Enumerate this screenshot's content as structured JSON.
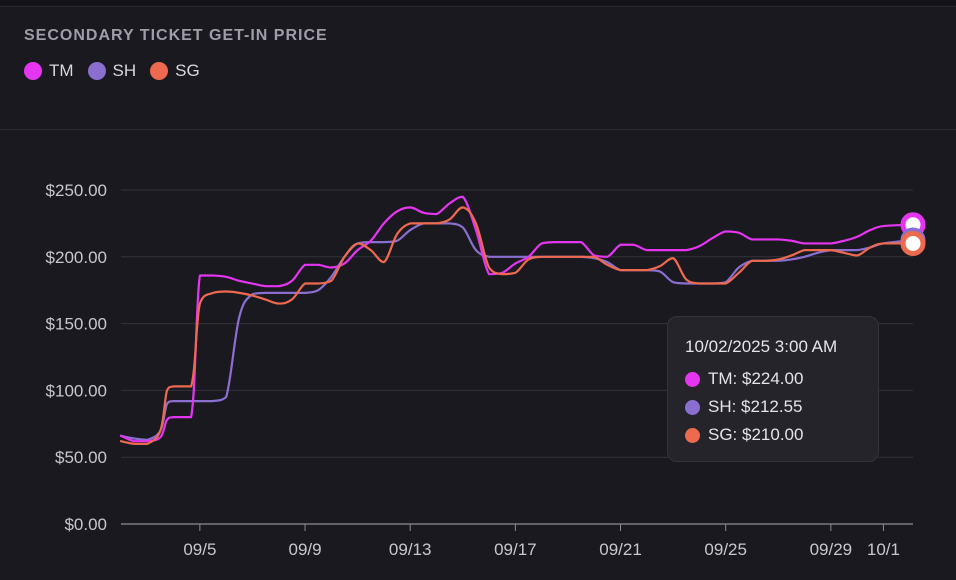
{
  "title": "SECONDARY TICKET GET-IN PRICE",
  "legend": [
    {
      "label": "TM",
      "color": "#e535f0"
    },
    {
      "label": "SH",
      "color": "#8a6fd0"
    },
    {
      "label": "SG",
      "color": "#ee6a4e"
    }
  ],
  "tooltip": {
    "title": "10/02/2025 3:00 AM",
    "rows": [
      {
        "text": "TM: $224.00",
        "color": "#e535f0"
      },
      {
        "text": "SH: $212.55",
        "color": "#8a6fd0"
      },
      {
        "text": "SG: $210.00",
        "color": "#ee6a4e"
      }
    ]
  },
  "chart_data": {
    "type": "line",
    "title": "SECONDARY TICKET GET-IN PRICE",
    "xlabel": "",
    "ylabel": "",
    "ylim": [
      0,
      250
    ],
    "xlim": [
      "2025-09-02",
      "2025-10-02T03:00"
    ],
    "y_ticks": [
      "$0.00",
      "$50.00",
      "$100.00",
      "$150.00",
      "$200.00",
      "$250.00"
    ],
    "y_tick_values": [
      0,
      50,
      100,
      150,
      200,
      250
    ],
    "x_ticks": [
      "09/5",
      "09/9",
      "09/13",
      "09/17",
      "09/21",
      "09/25",
      "09/29",
      "10/1"
    ],
    "x_tick_dates": [
      "2025-09-05",
      "2025-09-09",
      "2025-09-13",
      "2025-09-17",
      "2025-09-21",
      "2025-09-25",
      "2025-09-29",
      "2025-10-01"
    ],
    "grid": true,
    "legend_position": "top-left",
    "series": [
      {
        "name": "TM",
        "color": "#e535f0",
        "points": [
          [
            "2025-09-02",
            66
          ],
          [
            "2025-09-02T12:00",
            62
          ],
          [
            "2025-09-03",
            62
          ],
          [
            "2025-09-03T12:00",
            65
          ],
          [
            "2025-09-03T18:00",
            78
          ],
          [
            "2025-09-04",
            80
          ],
          [
            "2025-09-04T16:00",
            80
          ],
          [
            "2025-09-05",
            186
          ],
          [
            "2025-09-05T12:00",
            186
          ],
          [
            "2025-09-06",
            185
          ],
          [
            "2025-09-06T12:00",
            182
          ],
          [
            "2025-09-07",
            180
          ],
          [
            "2025-09-07T12:00",
            178
          ],
          [
            "2025-09-08",
            178
          ],
          [
            "2025-09-08T12:00",
            182
          ],
          [
            "2025-09-09",
            194
          ],
          [
            "2025-09-09T12:00",
            194
          ],
          [
            "2025-09-10",
            192
          ],
          [
            "2025-09-10T12:00",
            195
          ],
          [
            "2025-09-11",
            205
          ],
          [
            "2025-09-11T12:00",
            212
          ],
          [
            "2025-09-12",
            225
          ],
          [
            "2025-09-12T12:00",
            234
          ],
          [
            "2025-09-13",
            237
          ],
          [
            "2025-09-13T12:00",
            233
          ],
          [
            "2025-09-14",
            232
          ],
          [
            "2025-09-14T12:00",
            240
          ],
          [
            "2025-09-15",
            245
          ],
          [
            "2025-09-15T12:00",
            220
          ],
          [
            "2025-09-16",
            187
          ],
          [
            "2025-09-16T12:00",
            188
          ],
          [
            "2025-09-17",
            195
          ],
          [
            "2025-09-17T12:00",
            200
          ],
          [
            "2025-09-18",
            210
          ],
          [
            "2025-09-18T12:00",
            211
          ],
          [
            "2025-09-19",
            211
          ],
          [
            "2025-09-19T12:00",
            211
          ],
          [
            "2025-09-20",
            201
          ],
          [
            "2025-09-20T12:00",
            200
          ],
          [
            "2025-09-21",
            209
          ],
          [
            "2025-09-21T12:00",
            209
          ],
          [
            "2025-09-22",
            205
          ],
          [
            "2025-09-22T12:00",
            205
          ],
          [
            "2025-09-23",
            205
          ],
          [
            "2025-09-23T12:00",
            205
          ],
          [
            "2025-09-24",
            208
          ],
          [
            "2025-09-24T12:00",
            214
          ],
          [
            "2025-09-25",
            219
          ],
          [
            "2025-09-25T12:00",
            218
          ],
          [
            "2025-09-26",
            213
          ],
          [
            "2025-09-26T12:00",
            213
          ],
          [
            "2025-09-27",
            213
          ],
          [
            "2025-09-27T12:00",
            212
          ],
          [
            "2025-09-28",
            210
          ],
          [
            "2025-09-28T12:00",
            210
          ],
          [
            "2025-09-29",
            210
          ],
          [
            "2025-09-29T12:00",
            212
          ],
          [
            "2025-09-30",
            215
          ],
          [
            "2025-09-30T12:00",
            220
          ],
          [
            "2025-10-01",
            223
          ],
          [
            "2025-10-02T03:00",
            224
          ]
        ]
      },
      {
        "name": "SH",
        "color": "#8a6fd0",
        "points": [
          [
            "2025-09-02",
            66
          ],
          [
            "2025-09-02T12:00",
            64
          ],
          [
            "2025-09-03",
            63
          ],
          [
            "2025-09-03T12:00",
            70
          ],
          [
            "2025-09-03T18:00",
            90
          ],
          [
            "2025-09-04",
            92
          ],
          [
            "2025-09-04T16:00",
            92
          ],
          [
            "2025-09-05",
            92
          ],
          [
            "2025-09-05T12:00",
            92
          ],
          [
            "2025-09-06",
            95
          ],
          [
            "2025-09-06T12:00",
            155
          ],
          [
            "2025-09-07",
            172
          ],
          [
            "2025-09-07T12:00",
            173
          ],
          [
            "2025-09-08",
            173
          ],
          [
            "2025-09-08T12:00",
            173
          ],
          [
            "2025-09-09",
            173
          ],
          [
            "2025-09-09T12:00",
            175
          ],
          [
            "2025-09-10",
            185
          ],
          [
            "2025-09-10T12:00",
            200
          ],
          [
            "2025-09-11",
            210
          ],
          [
            "2025-09-11T12:00",
            211
          ],
          [
            "2025-09-12",
            211
          ],
          [
            "2025-09-12T12:00",
            212
          ],
          [
            "2025-09-13",
            220
          ],
          [
            "2025-09-13T12:00",
            225
          ],
          [
            "2025-09-14",
            225
          ],
          [
            "2025-09-14T12:00",
            225
          ],
          [
            "2025-09-15",
            222
          ],
          [
            "2025-09-15T12:00",
            205
          ],
          [
            "2025-09-16",
            200
          ],
          [
            "2025-09-16T12:00",
            200
          ],
          [
            "2025-09-17",
            200
          ],
          [
            "2025-09-17T12:00",
            200
          ],
          [
            "2025-09-18",
            200
          ],
          [
            "2025-09-18T12:00",
            200
          ],
          [
            "2025-09-19",
            200
          ],
          [
            "2025-09-19T12:00",
            200
          ],
          [
            "2025-09-20",
            199
          ],
          [
            "2025-09-20T12:00",
            196
          ],
          [
            "2025-09-21",
            190
          ],
          [
            "2025-09-21T12:00",
            190
          ],
          [
            "2025-09-22",
            190
          ],
          [
            "2025-09-22T12:00",
            189
          ],
          [
            "2025-09-23",
            181
          ],
          [
            "2025-09-23T12:00",
            180
          ],
          [
            "2025-09-24",
            180
          ],
          [
            "2025-09-24T12:00",
            180
          ],
          [
            "2025-09-25",
            181
          ],
          [
            "2025-09-25T12:00",
            192
          ],
          [
            "2025-09-26",
            197
          ],
          [
            "2025-09-26T12:00",
            197
          ],
          [
            "2025-09-27",
            197
          ],
          [
            "2025-09-27T12:00",
            198
          ],
          [
            "2025-09-28",
            200
          ],
          [
            "2025-09-28T12:00",
            203
          ],
          [
            "2025-09-29",
            205
          ],
          [
            "2025-09-29T12:00",
            205
          ],
          [
            "2025-09-30",
            205
          ],
          [
            "2025-09-30T12:00",
            207
          ],
          [
            "2025-10-01",
            210
          ],
          [
            "2025-10-02T03:00",
            212.55
          ]
        ]
      },
      {
        "name": "SG",
        "color": "#ee6a4e",
        "points": [
          [
            "2025-09-02",
            62
          ],
          [
            "2025-09-02T12:00",
            60
          ],
          [
            "2025-09-03",
            60
          ],
          [
            "2025-09-03T12:00",
            70
          ],
          [
            "2025-09-03T18:00",
            100
          ],
          [
            "2025-09-04",
            103
          ],
          [
            "2025-09-04T16:00",
            103
          ],
          [
            "2025-09-05",
            165
          ],
          [
            "2025-09-05T12:00",
            173
          ],
          [
            "2025-09-06",
            174
          ],
          [
            "2025-09-06T12:00",
            173
          ],
          [
            "2025-09-07",
            171
          ],
          [
            "2025-09-07T12:00",
            168
          ],
          [
            "2025-09-08",
            165
          ],
          [
            "2025-09-08T12:00",
            168
          ],
          [
            "2025-09-09",
            180
          ],
          [
            "2025-09-09T12:00",
            180
          ],
          [
            "2025-09-10",
            182
          ],
          [
            "2025-09-10T12:00",
            200
          ],
          [
            "2025-09-11",
            210
          ],
          [
            "2025-09-11T12:00",
            205
          ],
          [
            "2025-09-12",
            196
          ],
          [
            "2025-09-12T12:00",
            217
          ],
          [
            "2025-09-13",
            225
          ],
          [
            "2025-09-13T12:00",
            225
          ],
          [
            "2025-09-14",
            225
          ],
          [
            "2025-09-14T12:00",
            228
          ],
          [
            "2025-09-15",
            237
          ],
          [
            "2025-09-15T12:00",
            225
          ],
          [
            "2025-09-16",
            192
          ],
          [
            "2025-09-16T12:00",
            187
          ],
          [
            "2025-09-17",
            188
          ],
          [
            "2025-09-17T12:00",
            198
          ],
          [
            "2025-09-18",
            200
          ],
          [
            "2025-09-18T12:00",
            200
          ],
          [
            "2025-09-19",
            200
          ],
          [
            "2025-09-19T12:00",
            200
          ],
          [
            "2025-09-20",
            200
          ],
          [
            "2025-09-20T12:00",
            194
          ],
          [
            "2025-09-21",
            190
          ],
          [
            "2025-09-21T12:00",
            190
          ],
          [
            "2025-09-22",
            190
          ],
          [
            "2025-09-22T12:00",
            193
          ],
          [
            "2025-09-23",
            199
          ],
          [
            "2025-09-23T12:00",
            183
          ],
          [
            "2025-09-24",
            180
          ],
          [
            "2025-09-24T12:00",
            180
          ],
          [
            "2025-09-25",
            180
          ],
          [
            "2025-09-25T12:00",
            188
          ],
          [
            "2025-09-26",
            197
          ],
          [
            "2025-09-26T12:00",
            197
          ],
          [
            "2025-09-27",
            198
          ],
          [
            "2025-09-27T12:00",
            201
          ],
          [
            "2025-09-28",
            205
          ],
          [
            "2025-09-28T12:00",
            205
          ],
          [
            "2025-09-29",
            205
          ],
          [
            "2025-09-29T12:00",
            203
          ],
          [
            "2025-09-30",
            201
          ],
          [
            "2025-09-30T12:00",
            207
          ],
          [
            "2025-10-01",
            210
          ],
          [
            "2025-10-02T03:00",
            210
          ]
        ]
      }
    ]
  }
}
